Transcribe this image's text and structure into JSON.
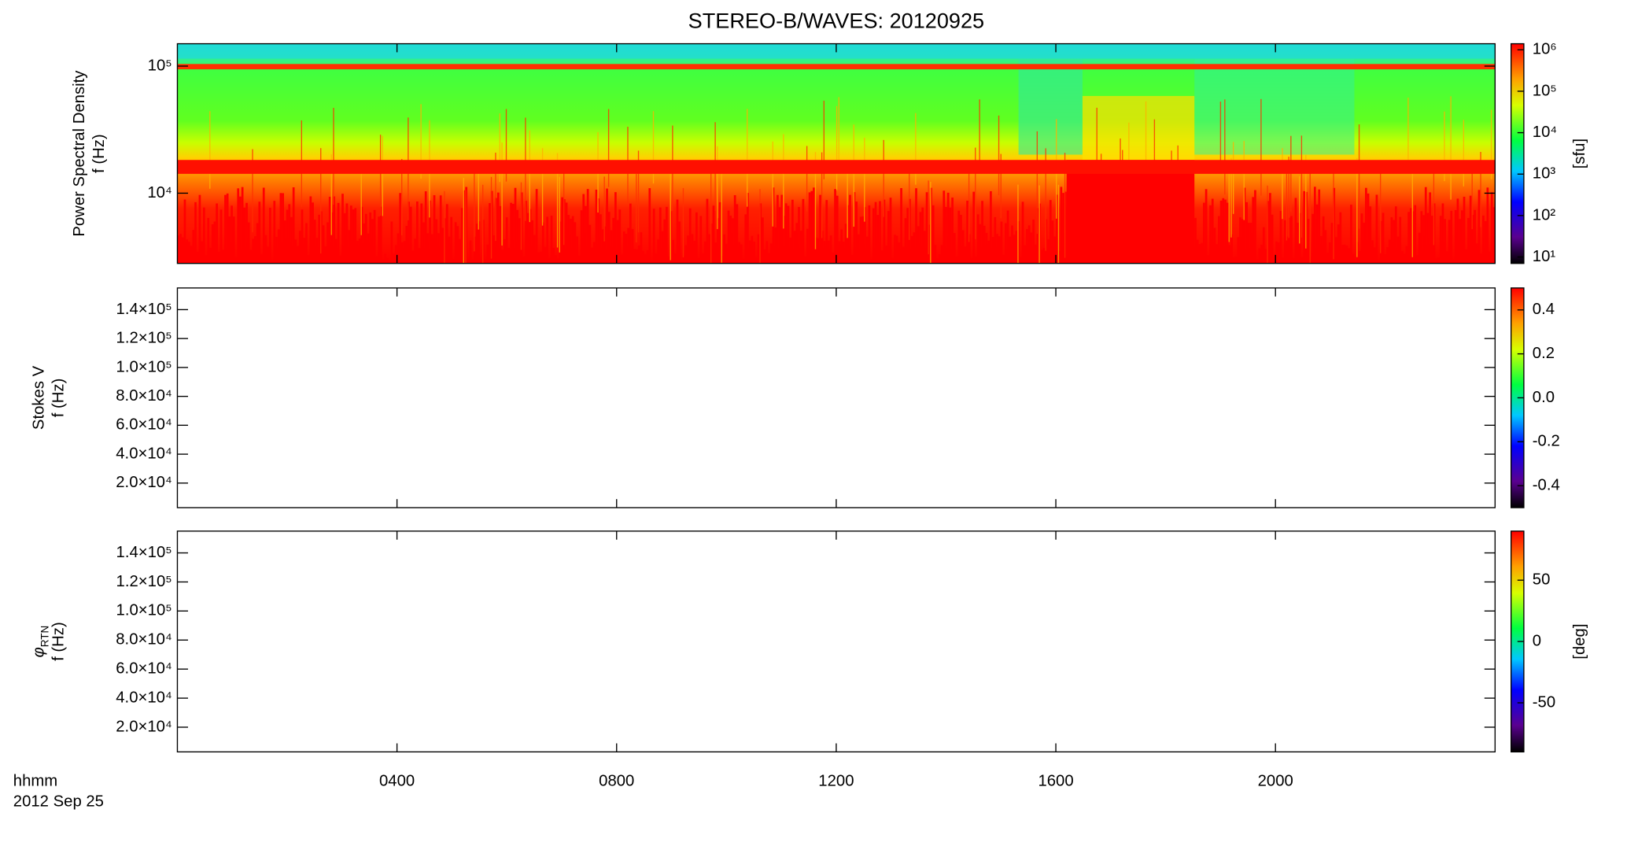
{
  "chart_data": {
    "type": "spectrogram",
    "title": "STEREO-B/WAVES: 20120925",
    "x_label": "hhmm",
    "x_date": "2012 Sep 25",
    "xlim": [
      0,
      24
    ],
    "xticks": [
      {
        "value": 4,
        "label": "0400"
      },
      {
        "value": 8,
        "label": "0800"
      },
      {
        "value": 12,
        "label": "1200"
      },
      {
        "value": 16,
        "label": "1600"
      },
      {
        "value": 20,
        "label": "2000"
      }
    ],
    "panels": [
      {
        "ylabel": "Power Spectral Density",
        "ylabel_unit": "f (Hz)",
        "log_scale": true,
        "ylim": [
          2800,
          150000
        ],
        "yticks": [
          {
            "value": 10000,
            "label": "10⁴"
          },
          {
            "value": 100000,
            "label": "10⁵"
          }
        ],
        "colorbar": {
          "label": "[sfu]",
          "log_scale": true,
          "clim": [
            7,
            1400000
          ],
          "ticks": [
            {
              "value": 10,
              "label": "10¹"
            },
            {
              "value": 100,
              "label": "10²"
            },
            {
              "value": 1000,
              "label": "10³"
            },
            {
              "value": 10000,
              "label": "10⁴"
            },
            {
              "value": 100000,
              "label": "10⁵"
            },
            {
              "value": 1000000,
              "label": "10⁶"
            }
          ]
        }
      },
      {
        "ylabel": "Stokes V",
        "ylabel_unit": "f (Hz)",
        "log_scale": false,
        "ylim": [
          3000,
          155000
        ],
        "yticks": [
          {
            "value": 20000,
            "label": "2.0×10⁴"
          },
          {
            "value": 40000,
            "label": "4.0×10⁴"
          },
          {
            "value": 60000,
            "label": "6.0×10⁴"
          },
          {
            "value": 80000,
            "label": "8.0×10⁴"
          },
          {
            "value": 100000,
            "label": "1.0×10⁵"
          },
          {
            "value": 120000,
            "label": "1.2×10⁵"
          },
          {
            "value": 140000,
            "label": "1.4×10⁵"
          }
        ],
        "colorbar": {
          "log_scale": false,
          "clim": [
            -0.5,
            0.5
          ],
          "ticks": [
            -0.4,
            -0.2,
            {
              "value": 0,
              "label": "0.0"
            },
            0.2,
            0.4
          ]
        }
      },
      {
        "ylabel": "φ",
        "ylabel_subscript": "RTN",
        "ylabel_unit": "f (Hz)",
        "log_scale": false,
        "ylim": [
          3000,
          155000
        ],
        "yticks": [
          {
            "value": 20000,
            "label": "2.0×10⁴"
          },
          {
            "value": 40000,
            "label": "4.0×10⁴"
          },
          {
            "value": 60000,
            "label": "6.0×10⁴"
          },
          {
            "value": 80000,
            "label": "8.0×10⁴"
          },
          {
            "value": 100000,
            "label": "1.0×10⁵"
          },
          {
            "value": 120000,
            "label": "1.2×10⁵"
          },
          {
            "value": 140000,
            "label": "1.4×10⁵"
          }
        ],
        "colorbar": {
          "label": "[deg]",
          "log_scale": false,
          "clim": [
            -90,
            90
          ],
          "ticks": [
            -50,
            0,
            50
          ]
        }
      }
    ]
  }
}
